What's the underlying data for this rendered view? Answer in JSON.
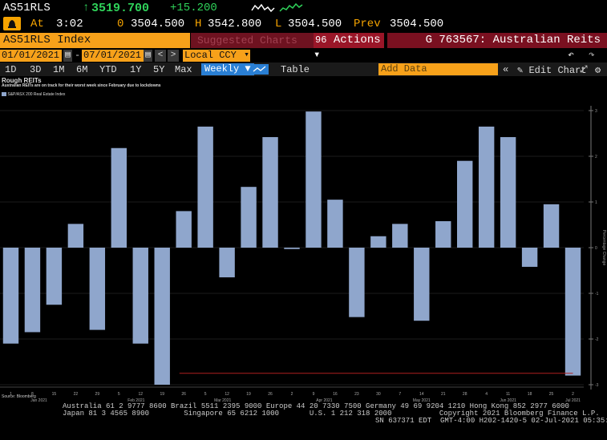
{
  "header": {
    "ticker": "AS51RLS",
    "last_arrow": "↑",
    "last": "3519.700",
    "change": "+15.200",
    "at_label": "At",
    "time": "3:02",
    "open_label": "0",
    "open": "3504.500",
    "high_label": "H",
    "high": "3542.800",
    "low_label": "L",
    "low": "3504.500",
    "prev_label": "Prev",
    "prev": "3504.500"
  },
  "toolbar": {
    "security": "AS51RLS Index",
    "suggested": "Suggested Charts",
    "actions_num": "96",
    "actions": "Actions",
    "chart_name": "G 763567: Australian Reits",
    "start_date": "01/01/2021",
    "end_date": "07/01/2021",
    "currency": "Local CCY",
    "ranges": [
      "1D",
      "3D",
      "1M",
      "6M",
      "YTD",
      "1Y",
      "5Y",
      "Max"
    ],
    "period": "Weekly ▼",
    "table": "Table",
    "add_data_placeholder": "Add Data",
    "edit_chart": "Edit Chart"
  },
  "chart_data": {
    "type": "bar",
    "title": "Rough REITs",
    "subtitle": "Australian REITs are on track for their worst week since February due to lockdowns",
    "legend": [
      "S&P/ASX 200 Real Estate Index"
    ],
    "ylabel": "Percentage Change",
    "ylim": [
      -3,
      3
    ],
    "yticks": [
      3,
      2,
      1,
      0,
      -1,
      -2,
      -3
    ],
    "color": "#8fa6cc",
    "series": [
      {
        "values": [
          -2.1,
          -1.85,
          -1.25,
          0.52,
          -1.8,
          2.18,
          -2.1,
          -3.0,
          0.8,
          2.65,
          -0.65,
          1.33,
          2.42,
          -0.03,
          2.98,
          1.05,
          -1.52,
          0.25,
          0.52,
          -1.6,
          0.58,
          1.9,
          2.65,
          2.42,
          -0.42,
          0.95,
          -2.8
        ]
      }
    ],
    "x_ticks": [
      {
        "i": 0,
        "label": "1"
      },
      {
        "i": 1,
        "label": "8"
      },
      {
        "i": 2,
        "label": "15"
      },
      {
        "i": 3,
        "label": "22"
      },
      {
        "i": 4,
        "label": "29"
      },
      {
        "i": 5,
        "label": "5"
      },
      {
        "i": 6,
        "label": "12"
      },
      {
        "i": 7,
        "label": "19"
      },
      {
        "i": 8,
        "label": "26"
      },
      {
        "i": 9,
        "label": "5"
      },
      {
        "i": 10,
        "label": "12"
      },
      {
        "i": 11,
        "label": "19"
      },
      {
        "i": 12,
        "label": "26"
      },
      {
        "i": 13,
        "label": "2"
      },
      {
        "i": 14,
        "label": "9"
      },
      {
        "i": 15,
        "label": "16"
      },
      {
        "i": 16,
        "label": "23"
      },
      {
        "i": 17,
        "label": "30"
      },
      {
        "i": 18,
        "label": "7"
      },
      {
        "i": 19,
        "label": "14"
      },
      {
        "i": 20,
        "label": "21"
      },
      {
        "i": 21,
        "label": "28"
      },
      {
        "i": 22,
        "label": "4"
      },
      {
        "i": 23,
        "label": "11"
      },
      {
        "i": 24,
        "label": "18"
      },
      {
        "i": 25,
        "label": "25"
      },
      {
        "i": 26,
        "label": "2"
      }
    ],
    "x_group_labels": [
      {
        "i": 1.3,
        "label": "Jan 2021"
      },
      {
        "i": 5.8,
        "label": "Feb 2021"
      },
      {
        "i": 9.8,
        "label": "Mar 2021"
      },
      {
        "i": 14.5,
        "label": "Apr 2021"
      },
      {
        "i": 19.0,
        "label": "May 2021"
      },
      {
        "i": 23.0,
        "label": "Jun 2021"
      },
      {
        "i": 26.0,
        "label": "Jul 2021"
      }
    ],
    "reference_line": {
      "value": -2.75,
      "from_index": 7.8,
      "to_index": 26,
      "color": "#b02020"
    }
  },
  "footer": {
    "source": "Source: Bloomberg",
    "line1": "Australia 61 2 9777 8600 Brazil 5511 2395 9000 Europe 44 20 7330 7500 Germany 49 69 9204 1210 Hong Kong 852 2977 6000",
    "line2": "Japan 81 3 4565 8900        Singapore 65 6212 1000       U.S. 1 212 318 2000           Copyright 2021 Bloomberg Finance L.P.",
    "line3": "SN 637371 EDT  GMT-4:00 H202-1420-5 02-Jul-2021 05:35:57"
  }
}
